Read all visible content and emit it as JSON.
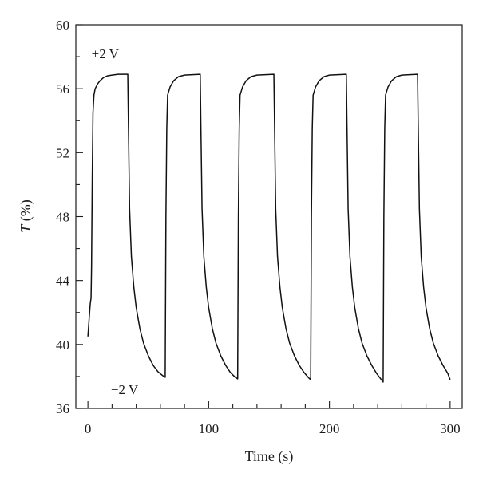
{
  "chart_data": {
    "type": "line",
    "xlabel": "Time (s)",
    "ylabel_italic": "T",
    "ylabel_unit": " (%)",
    "xlim": [
      -10,
      310
    ],
    "ylim": [
      36,
      60
    ],
    "xticks": [
      0,
      100,
      200,
      300
    ],
    "yticks": [
      36,
      40,
      44,
      48,
      52,
      56,
      60
    ],
    "x_minor_step": 20,
    "y_minor_step": 2,
    "grid": false,
    "annotations": [
      {
        "text": "+2 V",
        "x": 3,
        "y": 57.9
      },
      {
        "text": "−2 V",
        "x": 19,
        "y": 36.9
      }
    ],
    "series": [
      {
        "color": "#111111",
        "points": [
          [
            0,
            40.5
          ],
          [
            1,
            41.6
          ],
          [
            2,
            42.6
          ],
          [
            2.6,
            42.9
          ],
          [
            3,
            44.8
          ],
          [
            3.6,
            50.5
          ],
          [
            4.2,
            54.5
          ],
          [
            5,
            55.6
          ],
          [
            6,
            56.0
          ],
          [
            8,
            56.3
          ],
          [
            10,
            56.5
          ],
          [
            13,
            56.7
          ],
          [
            16,
            56.8
          ],
          [
            20,
            56.85
          ],
          [
            25,
            56.9
          ],
          [
            33,
            56.9
          ],
          [
            33.5,
            54.0
          ],
          [
            34.5,
            48.5
          ],
          [
            36,
            45.5
          ],
          [
            38,
            43.6
          ],
          [
            40,
            42.3
          ],
          [
            43,
            41.0
          ],
          [
            46,
            40.1
          ],
          [
            50,
            39.3
          ],
          [
            54,
            38.7
          ],
          [
            58,
            38.3
          ],
          [
            62,
            38.05
          ],
          [
            64,
            37.95
          ],
          [
            64.6,
            48.0
          ],
          [
            65.3,
            53.5
          ],
          [
            66,
            55.6
          ],
          [
            68,
            56.1
          ],
          [
            71,
            56.5
          ],
          [
            75,
            56.75
          ],
          [
            80,
            56.85
          ],
          [
            93,
            56.9
          ],
          [
            93.5,
            54.0
          ],
          [
            94.5,
            48.5
          ],
          [
            96,
            45.5
          ],
          [
            98,
            43.6
          ],
          [
            100,
            42.3
          ],
          [
            103,
            41.0
          ],
          [
            106,
            40.1
          ],
          [
            110,
            39.3
          ],
          [
            114,
            38.7
          ],
          [
            118,
            38.25
          ],
          [
            122,
            37.95
          ],
          [
            124,
            37.85
          ],
          [
            124.6,
            48.0
          ],
          [
            125.3,
            53.5
          ],
          [
            126,
            55.6
          ],
          [
            128,
            56.1
          ],
          [
            131,
            56.5
          ],
          [
            135,
            56.75
          ],
          [
            140,
            56.85
          ],
          [
            154,
            56.9
          ],
          [
            154.5,
            54.0
          ],
          [
            155.5,
            48.5
          ],
          [
            157,
            45.5
          ],
          [
            159,
            43.6
          ],
          [
            161,
            42.3
          ],
          [
            164,
            41.0
          ],
          [
            167,
            40.1
          ],
          [
            171,
            39.3
          ],
          [
            175,
            38.7
          ],
          [
            179,
            38.25
          ],
          [
            183,
            37.9
          ],
          [
            184.5,
            37.8
          ],
          [
            185.1,
            48.0
          ],
          [
            185.8,
            53.5
          ],
          [
            186.5,
            55.6
          ],
          [
            188.5,
            56.1
          ],
          [
            191.5,
            56.5
          ],
          [
            195.5,
            56.75
          ],
          [
            200,
            56.85
          ],
          [
            214,
            56.9
          ],
          [
            214.5,
            54.0
          ],
          [
            215.5,
            48.5
          ],
          [
            217,
            45.5
          ],
          [
            219,
            43.6
          ],
          [
            221,
            42.3
          ],
          [
            224,
            41.0
          ],
          [
            227,
            40.1
          ],
          [
            231,
            39.3
          ],
          [
            235,
            38.7
          ],
          [
            239,
            38.2
          ],
          [
            243,
            37.8
          ],
          [
            244.5,
            37.65
          ],
          [
            245.1,
            48.0
          ],
          [
            245.8,
            53.5
          ],
          [
            246.5,
            55.6
          ],
          [
            248.5,
            56.1
          ],
          [
            251.5,
            56.5
          ],
          [
            255.5,
            56.75
          ],
          [
            260,
            56.85
          ],
          [
            273,
            56.9
          ],
          [
            273.5,
            54.0
          ],
          [
            274.5,
            48.5
          ],
          [
            276,
            45.5
          ],
          [
            278,
            43.6
          ],
          [
            280,
            42.3
          ],
          [
            283,
            41.0
          ],
          [
            286,
            40.1
          ],
          [
            290,
            39.3
          ],
          [
            294,
            38.7
          ],
          [
            298,
            38.2
          ],
          [
            300,
            37.8
          ]
        ]
      }
    ]
  }
}
